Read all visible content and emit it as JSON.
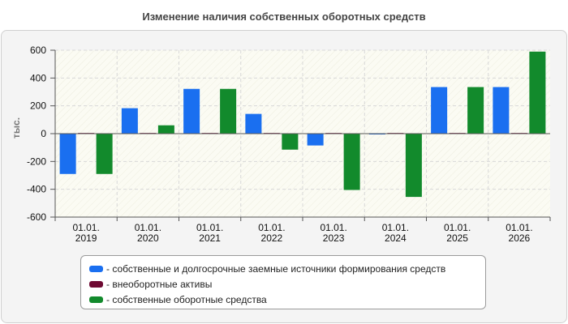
{
  "chart_data": {
    "type": "bar",
    "title": "Изменение наличия собственных оборотных средств",
    "ylabel": "тыс.",
    "xlabel": "",
    "categories": [
      [
        "01.01.",
        "2019"
      ],
      [
        "01.01.",
        "2020"
      ],
      [
        "01.01.",
        "2021"
      ],
      [
        "01.01.",
        "2022"
      ],
      [
        "01.01.",
        "2023"
      ],
      [
        "01.01.",
        "2024"
      ],
      [
        "01.01.",
        "2025"
      ],
      [
        "01.01.",
        "2026"
      ]
    ],
    "ylim": [
      -600,
      600
    ],
    "yticks": [
      "600",
      "400",
      "200",
      "0",
      "-200",
      "-400",
      "-600"
    ],
    "grid": true,
    "legend_position": "bottom",
    "series": [
      {
        "name": "- собственные и долгосрочные заемные источники формирования средств",
        "color": "#1a6ff0",
        "values": [
          -290,
          183,
          322,
          142,
          -85,
          -5,
          335,
          335
        ]
      },
      {
        "name": "- внеоборотные активы",
        "color": "#6e0a33",
        "values": [
          5,
          5,
          5,
          5,
          5,
          5,
          5,
          5
        ]
      },
      {
        "name": "- собственные оборотные средства",
        "color": "#128a2c",
        "values": [
          -290,
          60,
          322,
          -115,
          -405,
          -455,
          335,
          590
        ]
      }
    ]
  }
}
